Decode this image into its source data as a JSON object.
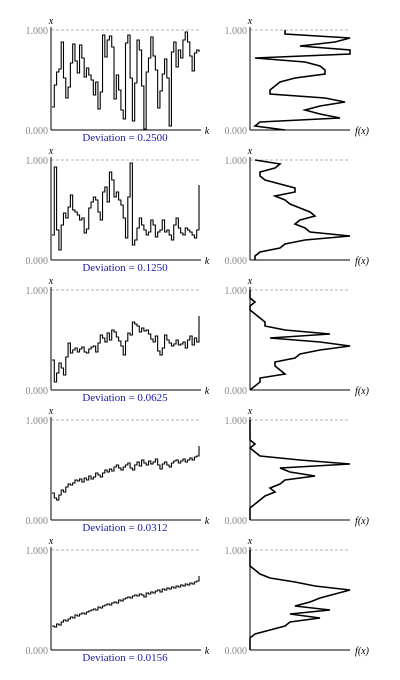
{
  "chart_data": [
    {
      "type": "line",
      "step": true,
      "caption": "Deviation = 0.2500",
      "xlabel": "k",
      "ylabel": "x",
      "ylim": [
        0,
        1
      ],
      "yticks": [
        "0.000",
        "1.000"
      ],
      "x": [
        0,
        1,
        2,
        3,
        4,
        5,
        6,
        7,
        8,
        9,
        10,
        11,
        12,
        13,
        14,
        15,
        16,
        17,
        18,
        19,
        20,
        21,
        22,
        23,
        24,
        25,
        26,
        27,
        28,
        29,
        30,
        31,
        32,
        33,
        34,
        35,
        36,
        37,
        38,
        39,
        40,
        41,
        42,
        43,
        44,
        45,
        46,
        47,
        48,
        49,
        50,
        51,
        52,
        53,
        54,
        55,
        56,
        57,
        58,
        59,
        60,
        61,
        62,
        63,
        64
      ],
      "values": [
        0.23,
        0.45,
        0.58,
        0.61,
        0.88,
        0.52,
        0.32,
        0.43,
        0.67,
        0.86,
        0.69,
        0.57,
        0.85,
        0.72,
        0.53,
        0.62,
        0.55,
        0.5,
        0.35,
        0.48,
        0.21,
        0.38,
        0.95,
        0.73,
        0.9,
        0.94,
        0.83,
        0.31,
        0.55,
        0.4,
        0.2,
        0.11,
        0.87,
        0.95,
        0.52,
        0.09,
        0.47,
        0.9,
        0.8,
        0.44,
        0.01,
        0.58,
        0.72,
        0.93,
        0.74,
        0.6,
        0.22,
        0.39,
        0.56,
        0.71,
        0.52,
        0.04,
        0.78,
        0.88,
        0.63,
        0.8,
        0.72,
        0.9,
        0.98,
        0.88,
        0.74,
        0.59,
        0.77,
        0.8,
        0.78
      ],
      "hist_label": "f(x)",
      "hist_ylabel": "x",
      "hist_yticks": [
        "0.000",
        "1.000"
      ],
      "hist_bins": [
        0.0,
        0.04,
        0.08,
        0.12,
        0.16,
        0.2,
        0.24,
        0.28,
        0.32,
        0.36,
        0.4,
        0.44,
        0.48,
        0.52,
        0.56,
        0.6,
        0.64,
        0.68,
        0.72,
        0.76,
        0.8,
        0.84,
        0.88,
        0.92,
        0.96,
        1.0
      ],
      "hist_density": [
        0.35,
        0.05,
        0.1,
        0.9,
        0.7,
        0.55,
        0.7,
        0.95,
        0.75,
        0.2,
        0.2,
        0.25,
        0.3,
        0.45,
        0.75,
        0.75,
        0.7,
        0.55,
        0.05,
        1.0,
        1.0,
        0.5,
        0.85,
        1.0,
        0.35,
        0.35
      ]
    },
    {
      "type": "line",
      "step": true,
      "caption": "Deviation = 0.1250",
      "xlabel": "k",
      "ylabel": "x",
      "ylim": [
        0,
        1
      ],
      "yticks": [
        "0.000",
        "1.000"
      ],
      "x": [
        0,
        1,
        2,
        3,
        4,
        5,
        6,
        7,
        8,
        9,
        10,
        11,
        12,
        13,
        14,
        15,
        16,
        17,
        18,
        19,
        20,
        21,
        22,
        23,
        24,
        25,
        26,
        27,
        28,
        29,
        30,
        31,
        32,
        33,
        34,
        35,
        36,
        37,
        38,
        39,
        40,
        41,
        42,
        43,
        44,
        45,
        46,
        47,
        48,
        49,
        50,
        51,
        52,
        53,
        54,
        55,
        56,
        57,
        58,
        59,
        60,
        61,
        62,
        63,
        64
      ],
      "values": [
        0.25,
        0.93,
        0.3,
        0.1,
        0.35,
        0.47,
        0.42,
        0.53,
        0.65,
        0.5,
        0.48,
        0.45,
        0.4,
        0.42,
        0.27,
        0.31,
        0.52,
        0.58,
        0.63,
        0.6,
        0.48,
        0.4,
        0.68,
        0.73,
        0.58,
        0.88,
        0.8,
        0.63,
        0.68,
        0.6,
        0.55,
        0.42,
        0.22,
        0.63,
        0.97,
        0.15,
        0.2,
        0.32,
        0.42,
        0.35,
        0.3,
        0.25,
        0.28,
        0.4,
        0.35,
        0.23,
        0.28,
        0.3,
        0.4,
        0.28,
        0.3,
        0.25,
        0.2,
        0.35,
        0.42,
        0.32,
        0.27,
        0.25,
        0.32,
        0.3,
        0.28,
        0.25,
        0.22,
        0.3,
        0.75
      ],
      "hist_label": "f(x)",
      "hist_ylabel": "x",
      "hist_yticks": [
        "0.000",
        "1.000"
      ],
      "hist_bins": [
        0.0,
        0.04,
        0.08,
        0.12,
        0.16,
        0.2,
        0.24,
        0.28,
        0.32,
        0.36,
        0.4,
        0.44,
        0.48,
        0.52,
        0.56,
        0.6,
        0.64,
        0.68,
        0.72,
        0.76,
        0.8,
        0.84,
        0.88,
        0.92,
        0.96,
        1.0
      ],
      "hist_density": [
        0.05,
        0.05,
        0.1,
        0.3,
        0.35,
        0.55,
        1.0,
        0.6,
        0.55,
        0.45,
        0.5,
        0.65,
        0.6,
        0.5,
        0.4,
        0.35,
        0.25,
        0.45,
        0.45,
        0.3,
        0.15,
        0.1,
        0.1,
        0.25,
        0.3,
        0.05
      ]
    },
    {
      "type": "line",
      "step": true,
      "caption": "Deviation = 0.0625",
      "xlabel": "k",
      "ylabel": "x",
      "ylim": [
        0,
        1
      ],
      "yticks": [
        "0.000",
        "1.000"
      ],
      "x": [
        0,
        1,
        2,
        3,
        4,
        5,
        6,
        7,
        8,
        9,
        10,
        11,
        12,
        13,
        14,
        15,
        16,
        17,
        18,
        19,
        20,
        21,
        22,
        23,
        24,
        25,
        26,
        27,
        28,
        29,
        30,
        31,
        32,
        33,
        34,
        35,
        36,
        37,
        38,
        39,
        40,
        41,
        42,
        43,
        44,
        45,
        46,
        47,
        48,
        49,
        50,
        51,
        52,
        53,
        54,
        55,
        56,
        57,
        58,
        59,
        60,
        61,
        62,
        63,
        64
      ],
      "values": [
        0.3,
        0.08,
        0.17,
        0.27,
        0.22,
        0.15,
        0.33,
        0.47,
        0.37,
        0.4,
        0.42,
        0.38,
        0.41,
        0.43,
        0.38,
        0.37,
        0.41,
        0.43,
        0.44,
        0.38,
        0.47,
        0.55,
        0.52,
        0.48,
        0.57,
        0.5,
        0.6,
        0.58,
        0.53,
        0.49,
        0.44,
        0.35,
        0.49,
        0.57,
        0.55,
        0.68,
        0.66,
        0.64,
        0.58,
        0.62,
        0.59,
        0.6,
        0.56,
        0.51,
        0.48,
        0.54,
        0.39,
        0.35,
        0.42,
        0.55,
        0.5,
        0.47,
        0.44,
        0.46,
        0.5,
        0.45,
        0.46,
        0.48,
        0.42,
        0.5,
        0.54,
        0.45,
        0.52,
        0.48,
        0.74
      ],
      "hist_label": "f(x)",
      "hist_ylabel": "x",
      "hist_yticks": [
        "0.000",
        "1.000"
      ],
      "hist_bins": [
        0.0,
        0.04,
        0.08,
        0.12,
        0.16,
        0.2,
        0.24,
        0.28,
        0.32,
        0.36,
        0.4,
        0.44,
        0.48,
        0.52,
        0.56,
        0.6,
        0.64,
        0.68,
        0.72,
        0.76,
        0.8,
        0.84,
        0.88,
        0.92,
        0.96,
        1.0
      ],
      "hist_density": [
        0.0,
        0.05,
        0.1,
        0.1,
        0.35,
        0.3,
        0.25,
        0.25,
        0.45,
        0.5,
        0.7,
        1.0,
        0.7,
        0.2,
        0.8,
        0.35,
        0.15,
        0.15,
        0.1,
        0.05,
        0.0,
        0.0,
        0.05,
        0.0,
        0.0,
        0.0
      ]
    },
    {
      "type": "line",
      "step": true,
      "caption": "Deviation = 0.0312",
      "xlabel": "k",
      "ylabel": "x",
      "ylim": [
        0,
        1
      ],
      "yticks": [
        "0.000",
        "1.000"
      ],
      "x": [
        0,
        1,
        2,
        3,
        4,
        5,
        6,
        7,
        8,
        9,
        10,
        11,
        12,
        13,
        14,
        15,
        16,
        17,
        18,
        19,
        20,
        21,
        22,
        23,
        24,
        25,
        26,
        27,
        28,
        29,
        30,
        31,
        32,
        33,
        34,
        35,
        36,
        37,
        38,
        39,
        40,
        41,
        42,
        43,
        44,
        45,
        46,
        47,
        48,
        49,
        50,
        51,
        52,
        53,
        54,
        55,
        56,
        57,
        58,
        59,
        60,
        61,
        62,
        63,
        64
      ],
      "values": [
        0.27,
        0.22,
        0.2,
        0.25,
        0.3,
        0.28,
        0.33,
        0.36,
        0.35,
        0.37,
        0.4,
        0.39,
        0.41,
        0.38,
        0.42,
        0.4,
        0.44,
        0.41,
        0.43,
        0.47,
        0.45,
        0.43,
        0.47,
        0.5,
        0.48,
        0.51,
        0.49,
        0.53,
        0.55,
        0.52,
        0.5,
        0.53,
        0.55,
        0.57,
        0.52,
        0.5,
        0.55,
        0.58,
        0.54,
        0.6,
        0.57,
        0.55,
        0.59,
        0.56,
        0.58,
        0.61,
        0.55,
        0.51,
        0.56,
        0.58,
        0.55,
        0.53,
        0.57,
        0.59,
        0.6,
        0.57,
        0.59,
        0.61,
        0.58,
        0.6,
        0.62,
        0.6,
        0.63,
        0.64,
        0.74
      ],
      "hist_label": "f(x)",
      "hist_ylabel": "x",
      "hist_yticks": [
        "0.000",
        "1.000"
      ],
      "hist_bins": [
        0.0,
        0.04,
        0.08,
        0.12,
        0.16,
        0.2,
        0.24,
        0.28,
        0.32,
        0.36,
        0.4,
        0.44,
        0.48,
        0.52,
        0.56,
        0.6,
        0.64,
        0.68,
        0.72,
        0.76,
        0.8,
        0.84,
        0.88,
        0.92,
        0.96,
        1.0
      ],
      "hist_density": [
        0.0,
        0.0,
        0.0,
        0.0,
        0.05,
        0.1,
        0.15,
        0.25,
        0.2,
        0.3,
        0.35,
        0.65,
        0.4,
        0.3,
        1.0,
        0.5,
        0.1,
        0.05,
        0.0,
        0.05,
        0.0,
        0.0,
        0.0,
        0.0,
        0.0,
        0.0
      ]
    },
    {
      "type": "line",
      "step": true,
      "caption": "Deviation = 0.0156",
      "xlabel": "k",
      "ylabel": "x",
      "ylim": [
        0,
        1
      ],
      "yticks": [
        "0.000",
        "1.000"
      ],
      "x": [
        0,
        1,
        2,
        3,
        4,
        5,
        6,
        7,
        8,
        9,
        10,
        11,
        12,
        13,
        14,
        15,
        16,
        17,
        18,
        19,
        20,
        21,
        22,
        23,
        24,
        25,
        26,
        27,
        28,
        29,
        30,
        31,
        32,
        33,
        34,
        35,
        36,
        37,
        38,
        39,
        40,
        41,
        42,
        43,
        44,
        45,
        46,
        47,
        48,
        49,
        50,
        51,
        52,
        53,
        54,
        55,
        56,
        57,
        58,
        59,
        60,
        61,
        62,
        63,
        64
      ],
      "values": [
        0.24,
        0.23,
        0.26,
        0.25,
        0.28,
        0.3,
        0.29,
        0.31,
        0.33,
        0.32,
        0.35,
        0.34,
        0.36,
        0.37,
        0.36,
        0.38,
        0.39,
        0.4,
        0.41,
        0.4,
        0.43,
        0.42,
        0.44,
        0.45,
        0.46,
        0.45,
        0.47,
        0.48,
        0.47,
        0.5,
        0.49,
        0.51,
        0.52,
        0.53,
        0.52,
        0.54,
        0.55,
        0.54,
        0.56,
        0.55,
        0.53,
        0.57,
        0.56,
        0.58,
        0.57,
        0.59,
        0.6,
        0.58,
        0.61,
        0.6,
        0.62,
        0.61,
        0.63,
        0.62,
        0.64,
        0.63,
        0.65,
        0.64,
        0.66,
        0.65,
        0.67,
        0.66,
        0.68,
        0.69,
        0.74
      ],
      "hist_label": "f(x)",
      "hist_ylabel": "x",
      "hist_yticks": [
        "0.000",
        "1.000"
      ],
      "hist_bins": [
        0.0,
        0.04,
        0.08,
        0.12,
        0.16,
        0.2,
        0.24,
        0.28,
        0.32,
        0.36,
        0.4,
        0.44,
        0.48,
        0.52,
        0.56,
        0.6,
        0.64,
        0.68,
        0.72,
        0.76,
        0.8,
        0.84,
        0.88,
        0.92,
        0.96,
        1.0
      ],
      "hist_density": [
        0.0,
        0.0,
        0.0,
        0.0,
        0.05,
        0.2,
        0.35,
        0.4,
        0.7,
        0.4,
        0.8,
        0.45,
        0.6,
        0.7,
        0.85,
        1.0,
        0.65,
        0.45,
        0.2,
        0.1,
        0.05,
        0.0,
        0.0,
        0.0,
        0.0,
        0.0
      ]
    }
  ]
}
